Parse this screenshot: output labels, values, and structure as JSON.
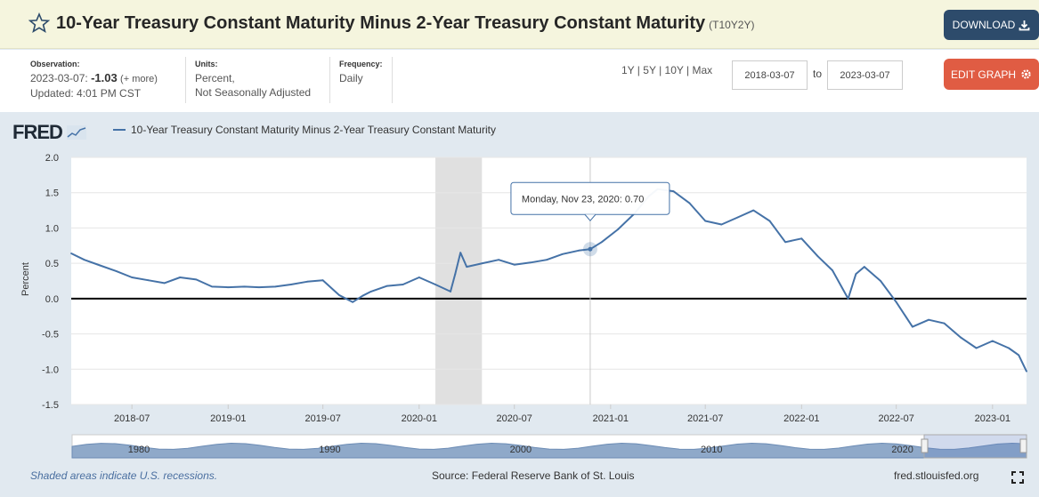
{
  "header": {
    "title": "10-Year Treasury Constant Maturity Minus 2-Year Treasury Constant Maturity",
    "series_id": "(T10Y2Y)",
    "download_label": "DOWNLOAD"
  },
  "info": {
    "observation_label": "Observation:",
    "observation_date": "2023-03-07:",
    "observation_value": "-1.03",
    "more_label": "(+ more)",
    "updated": "Updated: 4:01 PM CST",
    "units_label": "Units:",
    "units_line1": "Percent,",
    "units_line2": "Not Seasonally Adjusted",
    "frequency_label": "Frequency:",
    "frequency": "Daily",
    "range_1y": "1Y",
    "range_5y": "5Y",
    "range_10y": "10Y",
    "range_max": "Max",
    "start_date": "2018-03-07",
    "to_label": "to",
    "end_date": "2023-03-07",
    "edit_label": "EDIT GRAPH"
  },
  "legend_label": "10-Year Treasury Constant Maturity Minus 2-Year Treasury Constant Maturity",
  "logo_text": "FRED",
  "footer": {
    "note": "Shaded areas indicate U.S. recessions.",
    "source": "Source: Federal Reserve Bank of St. Louis",
    "site": "fred.stlouisfed.org"
  },
  "colors": {
    "line": "#4572a7",
    "recession": "#e0e0e0",
    "accent_download": "#2d4b6b",
    "accent_edit": "#e05c43"
  },
  "chart_data": {
    "type": "line",
    "title": "10-Year Treasury Constant Maturity Minus 2-Year Treasury Constant Maturity",
    "xlabel": "",
    "ylabel": "Percent",
    "ylim": [
      -1.5,
      2.0
    ],
    "xlim": [
      "2018-03-07",
      "2023-03-07"
    ],
    "y_ticks": [
      "2.0",
      "1.5",
      "1.0",
      "0.5",
      "0.0",
      "-0.5",
      "-1.0",
      "-1.5"
    ],
    "x_ticks": [
      "2018-07",
      "2019-01",
      "2019-07",
      "2020-01",
      "2020-07",
      "2021-01",
      "2021-07",
      "2022-01",
      "2022-07",
      "2023-01"
    ],
    "recession": [
      "2020-02-01",
      "2020-04-30"
    ],
    "tooltip": {
      "date_label": "Monday, Nov 23, 2020:",
      "value": "0.70",
      "x": "2020-11-23",
      "y": 0.7
    },
    "navigator_labels": [
      "1980",
      "1990",
      "2000",
      "2010",
      "2020"
    ],
    "series": [
      {
        "name": "10-Year Treasury Constant Maturity Minus 2-Year Treasury Constant Maturity",
        "points": [
          [
            "2018-03-07",
            0.64
          ],
          [
            "2018-04-01",
            0.55
          ],
          [
            "2018-05-01",
            0.47
          ],
          [
            "2018-06-01",
            0.39
          ],
          [
            "2018-07-01",
            0.3
          ],
          [
            "2018-08-01",
            0.26
          ],
          [
            "2018-09-01",
            0.22
          ],
          [
            "2018-10-01",
            0.3
          ],
          [
            "2018-11-01",
            0.27
          ],
          [
            "2018-12-01",
            0.17
          ],
          [
            "2019-01-01",
            0.16
          ],
          [
            "2019-02-01",
            0.17
          ],
          [
            "2019-03-01",
            0.16
          ],
          [
            "2019-04-01",
            0.17
          ],
          [
            "2019-05-01",
            0.2
          ],
          [
            "2019-06-01",
            0.24
          ],
          [
            "2019-07-01",
            0.26
          ],
          [
            "2019-08-01",
            0.05
          ],
          [
            "2019-08-27",
            -0.05
          ],
          [
            "2019-09-15",
            0.04
          ],
          [
            "2019-10-01",
            0.1
          ],
          [
            "2019-11-01",
            0.18
          ],
          [
            "2019-12-01",
            0.2
          ],
          [
            "2020-01-01",
            0.3
          ],
          [
            "2020-02-01",
            0.2
          ],
          [
            "2020-03-01",
            0.1
          ],
          [
            "2020-03-10",
            0.35
          ],
          [
            "2020-03-20",
            0.65
          ],
          [
            "2020-04-01",
            0.45
          ],
          [
            "2020-05-01",
            0.5
          ],
          [
            "2020-06-01",
            0.55
          ],
          [
            "2020-07-01",
            0.48
          ],
          [
            "2020-08-01",
            0.51
          ],
          [
            "2020-09-01",
            0.55
          ],
          [
            "2020-10-01",
            0.63
          ],
          [
            "2020-11-01",
            0.68
          ],
          [
            "2020-11-23",
            0.7
          ],
          [
            "2020-12-15",
            0.8
          ],
          [
            "2021-01-15",
            0.98
          ],
          [
            "2021-02-15",
            1.2
          ],
          [
            "2021-03-15",
            1.45
          ],
          [
            "2021-04-01",
            1.55
          ],
          [
            "2021-05-01",
            1.52
          ],
          [
            "2021-06-01",
            1.35
          ],
          [
            "2021-07-01",
            1.1
          ],
          [
            "2021-08-01",
            1.05
          ],
          [
            "2021-09-01",
            1.15
          ],
          [
            "2021-10-01",
            1.25
          ],
          [
            "2021-11-01",
            1.1
          ],
          [
            "2021-12-01",
            0.8
          ],
          [
            "2022-01-01",
            0.85
          ],
          [
            "2022-02-01",
            0.6
          ],
          [
            "2022-03-01",
            0.4
          ],
          [
            "2022-03-31",
            0.0
          ],
          [
            "2022-04-15",
            0.35
          ],
          [
            "2022-05-01",
            0.45
          ],
          [
            "2022-06-01",
            0.25
          ],
          [
            "2022-07-01",
            -0.05
          ],
          [
            "2022-08-01",
            -0.4
          ],
          [
            "2022-09-01",
            -0.3
          ],
          [
            "2022-10-01",
            -0.35
          ],
          [
            "2022-11-01",
            -0.55
          ],
          [
            "2022-12-01",
            -0.7
          ],
          [
            "2023-01-01",
            -0.6
          ],
          [
            "2023-02-01",
            -0.7
          ],
          [
            "2023-02-20",
            -0.8
          ],
          [
            "2023-03-07",
            -1.03
          ]
        ]
      }
    ]
  }
}
